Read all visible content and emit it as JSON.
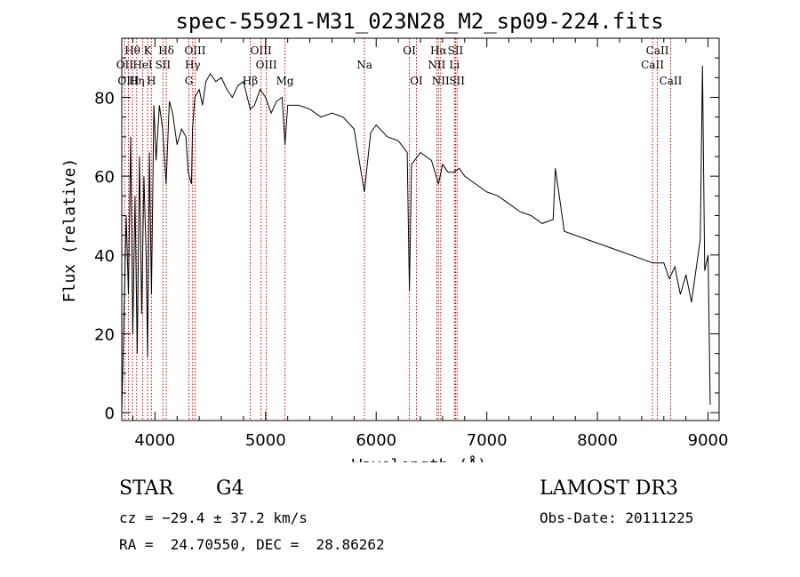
{
  "chart_data": {
    "type": "line",
    "title": "spec-55921-M31_023N28_M2_sp09-224.fits",
    "xlabel": "Wavelength (Å)",
    "ylabel": "Flux (relative)",
    "xlim": [
      3700,
      9100
    ],
    "ylim": [
      -2,
      95
    ],
    "xticks": [
      "4000",
      "5000",
      "6000",
      "7000",
      "8000",
      "9000"
    ],
    "yticks": [
      "0",
      "20",
      "40",
      "60",
      "80"
    ],
    "series": [
      {
        "name": "flux",
        "x": [
          3700,
          3720,
          3740,
          3760,
          3780,
          3800,
          3820,
          3840,
          3860,
          3880,
          3900,
          3920,
          3933,
          3950,
          3968,
          3990,
          4010,
          4040,
          4070,
          4101,
          4130,
          4160,
          4200,
          4240,
          4280,
          4300,
          4330,
          4340,
          4360,
          4400,
          4430,
          4460,
          4500,
          4550,
          4600,
          4650,
          4700,
          4750,
          4800,
          4861,
          4900,
          4950,
          5000,
          5050,
          5100,
          5150,
          5175,
          5200,
          5300,
          5400,
          5500,
          5600,
          5700,
          5800,
          5893,
          5950,
          6000,
          6100,
          6200,
          6280,
          6300,
          6320,
          6400,
          6500,
          6563,
          6600,
          6650,
          6700,
          6750,
          6800,
          6900,
          7000,
          7100,
          7200,
          7300,
          7400,
          7500,
          7600,
          7620,
          7700,
          7800,
          7900,
          8000,
          8100,
          8200,
          8300,
          8400,
          8500,
          8600,
          8650,
          8700,
          8750,
          8800,
          8850,
          8900,
          8930,
          8950,
          8970,
          9000,
          9020
        ],
        "values": [
          0,
          25,
          50,
          30,
          70,
          20,
          55,
          15,
          65,
          25,
          60,
          40,
          14,
          66,
          30,
          78,
          64,
          78,
          72,
          58,
          79,
          76,
          68,
          72,
          70,
          61,
          58,
          72,
          80,
          82,
          78,
          84,
          86,
          84,
          85,
          82,
          80,
          83,
          84,
          77,
          78,
          82,
          80,
          76,
          79,
          80,
          68,
          78,
          78,
          77,
          75,
          76,
          75,
          72,
          56,
          71,
          73,
          70,
          69,
          66,
          31,
          63,
          66,
          64,
          58,
          63,
          61,
          61,
          62,
          60,
          58,
          56,
          55,
          53,
          51,
          50,
          48,
          49,
          62,
          46,
          45,
          44,
          43,
          42,
          41,
          40,
          39,
          38,
          38,
          34,
          37,
          30,
          35,
          28,
          38,
          44,
          88,
          36,
          40,
          2
        ]
      }
    ],
    "lines": [
      {
        "label": "Hθ",
        "x": 3797,
        "row": 1
      },
      {
        "label": "OII",
        "x": 3727,
        "row": 2
      },
      {
        "label": "OIII",
        "x": 3760,
        "row": 3
      },
      {
        "label": "Hη",
        "x": 3835,
        "row": 3
      },
      {
        "label": "HeI",
        "x": 3889,
        "row": 2
      },
      {
        "label": "K",
        "x": 3934,
        "row": 1
      },
      {
        "label": "H",
        "x": 3968,
        "row": 3
      },
      {
        "label": "SII",
        "x": 4072,
        "row": 2
      },
      {
        "label": "Hδ",
        "x": 4102,
        "row": 1
      },
      {
        "label": "OIII",
        "x": 4363,
        "row": 1
      },
      {
        "label": "Hγ",
        "x": 4341,
        "row": 2
      },
      {
        "label": "G",
        "x": 4307,
        "row": 3
      },
      {
        "label": "OIII",
        "x": 4959,
        "row": 1
      },
      {
        "label": "OIII",
        "x": 5007,
        "row": 2
      },
      {
        "label": "Hβ",
        "x": 4861,
        "row": 3
      },
      {
        "label": "Mg",
        "x": 5175,
        "row": 3
      },
      {
        "label": "Na",
        "x": 5894,
        "row": 2
      },
      {
        "label": "OI",
        "x": 6300,
        "row": 1
      },
      {
        "label": "OI",
        "x": 6364,
        "row": 3
      },
      {
        "label": "Hα",
        "x": 6563,
        "row": 1
      },
      {
        "label": "NII",
        "x": 6548,
        "row": 2
      },
      {
        "label": "NII",
        "x": 6583,
        "row": 3
      },
      {
        "label": "SII",
        "x": 6717,
        "row": 1
      },
      {
        "label": "Li",
        "x": 6708,
        "row": 2
      },
      {
        "label": "SII",
        "x": 6731,
        "row": 3
      },
      {
        "label": "CaII",
        "x": 8542,
        "row": 1
      },
      {
        "label": "CaII",
        "x": 8498,
        "row": 2
      },
      {
        "label": "CaII",
        "x": 8662,
        "row": 3
      }
    ]
  },
  "info": {
    "object_class": "STAR",
    "subclass": "G4",
    "survey": "LAMOST DR3",
    "redshift": "cz = −29.4 ± 37.2 km/s",
    "obs_date": "Obs-Date: 20111225",
    "coords": "RA =  24.70550, DEC =  28.86262"
  },
  "colors": {
    "axis": "#000000",
    "spectrum": "#000000",
    "line_marker": "#cc0000"
  }
}
